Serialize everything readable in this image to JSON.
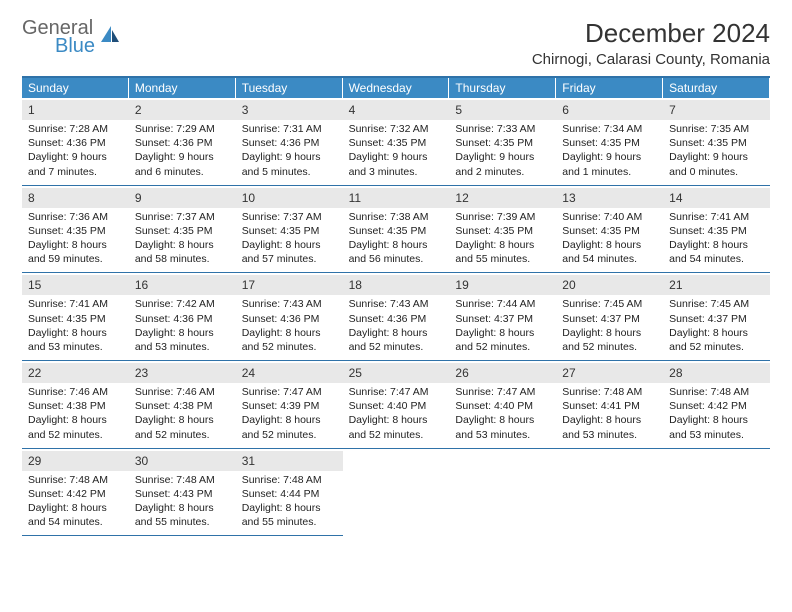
{
  "brand": {
    "word1": "General",
    "word2": "Blue"
  },
  "title": "December 2024",
  "location": "Chirnogi, Calarasi County, Romania",
  "colors": {
    "header_bg": "#3b8ac4",
    "header_text": "#ffffff",
    "border": "#2f72a8",
    "daynum_bg": "#e8e8e8",
    "text": "#222222"
  },
  "daysOfWeek": [
    "Sunday",
    "Monday",
    "Tuesday",
    "Wednesday",
    "Thursday",
    "Friday",
    "Saturday"
  ],
  "days": [
    {
      "n": "1",
      "sunrise": "7:28 AM",
      "sunset": "4:36 PM",
      "dl_h": "9",
      "dl_m": "7"
    },
    {
      "n": "2",
      "sunrise": "7:29 AM",
      "sunset": "4:36 PM",
      "dl_h": "9",
      "dl_m": "6"
    },
    {
      "n": "3",
      "sunrise": "7:31 AM",
      "sunset": "4:36 PM",
      "dl_h": "9",
      "dl_m": "5"
    },
    {
      "n": "4",
      "sunrise": "7:32 AM",
      "sunset": "4:35 PM",
      "dl_h": "9",
      "dl_m": "3"
    },
    {
      "n": "5",
      "sunrise": "7:33 AM",
      "sunset": "4:35 PM",
      "dl_h": "9",
      "dl_m": "2"
    },
    {
      "n": "6",
      "sunrise": "7:34 AM",
      "sunset": "4:35 PM",
      "dl_h": "9",
      "dl_m": "1"
    },
    {
      "n": "7",
      "sunrise": "7:35 AM",
      "sunset": "4:35 PM",
      "dl_h": "9",
      "dl_m": "0"
    },
    {
      "n": "8",
      "sunrise": "7:36 AM",
      "sunset": "4:35 PM",
      "dl_h": "8",
      "dl_m": "59"
    },
    {
      "n": "9",
      "sunrise": "7:37 AM",
      "sunset": "4:35 PM",
      "dl_h": "8",
      "dl_m": "58"
    },
    {
      "n": "10",
      "sunrise": "7:37 AM",
      "sunset": "4:35 PM",
      "dl_h": "8",
      "dl_m": "57"
    },
    {
      "n": "11",
      "sunrise": "7:38 AM",
      "sunset": "4:35 PM",
      "dl_h": "8",
      "dl_m": "56"
    },
    {
      "n": "12",
      "sunrise": "7:39 AM",
      "sunset": "4:35 PM",
      "dl_h": "8",
      "dl_m": "55"
    },
    {
      "n": "13",
      "sunrise": "7:40 AM",
      "sunset": "4:35 PM",
      "dl_h": "8",
      "dl_m": "54"
    },
    {
      "n": "14",
      "sunrise": "7:41 AM",
      "sunset": "4:35 PM",
      "dl_h": "8",
      "dl_m": "54"
    },
    {
      "n": "15",
      "sunrise": "7:41 AM",
      "sunset": "4:35 PM",
      "dl_h": "8",
      "dl_m": "53"
    },
    {
      "n": "16",
      "sunrise": "7:42 AM",
      "sunset": "4:36 PM",
      "dl_h": "8",
      "dl_m": "53"
    },
    {
      "n": "17",
      "sunrise": "7:43 AM",
      "sunset": "4:36 PM",
      "dl_h": "8",
      "dl_m": "52"
    },
    {
      "n": "18",
      "sunrise": "7:43 AM",
      "sunset": "4:36 PM",
      "dl_h": "8",
      "dl_m": "52"
    },
    {
      "n": "19",
      "sunrise": "7:44 AM",
      "sunset": "4:37 PM",
      "dl_h": "8",
      "dl_m": "52"
    },
    {
      "n": "20",
      "sunrise": "7:45 AM",
      "sunset": "4:37 PM",
      "dl_h": "8",
      "dl_m": "52"
    },
    {
      "n": "21",
      "sunrise": "7:45 AM",
      "sunset": "4:37 PM",
      "dl_h": "8",
      "dl_m": "52"
    },
    {
      "n": "22",
      "sunrise": "7:46 AM",
      "sunset": "4:38 PM",
      "dl_h": "8",
      "dl_m": "52"
    },
    {
      "n": "23",
      "sunrise": "7:46 AM",
      "sunset": "4:38 PM",
      "dl_h": "8",
      "dl_m": "52"
    },
    {
      "n": "24",
      "sunrise": "7:47 AM",
      "sunset": "4:39 PM",
      "dl_h": "8",
      "dl_m": "52"
    },
    {
      "n": "25",
      "sunrise": "7:47 AM",
      "sunset": "4:40 PM",
      "dl_h": "8",
      "dl_m": "52"
    },
    {
      "n": "26",
      "sunrise": "7:47 AM",
      "sunset": "4:40 PM",
      "dl_h": "8",
      "dl_m": "53"
    },
    {
      "n": "27",
      "sunrise": "7:48 AM",
      "sunset": "4:41 PM",
      "dl_h": "8",
      "dl_m": "53"
    },
    {
      "n": "28",
      "sunrise": "7:48 AM",
      "sunset": "4:42 PM",
      "dl_h": "8",
      "dl_m": "53"
    },
    {
      "n": "29",
      "sunrise": "7:48 AM",
      "sunset": "4:42 PM",
      "dl_h": "8",
      "dl_m": "54"
    },
    {
      "n": "30",
      "sunrise": "7:48 AM",
      "sunset": "4:43 PM",
      "dl_h": "8",
      "dl_m": "55"
    },
    {
      "n": "31",
      "sunrise": "7:48 AM",
      "sunset": "4:44 PM",
      "dl_h": "8",
      "dl_m": "55"
    }
  ],
  "labels": {
    "sunrise_prefix": "Sunrise: ",
    "sunset_prefix": "Sunset: ",
    "daylight_prefix": "Daylight: ",
    "hours_word": " hours",
    "and_word": "and ",
    "minutes_word": " minutes."
  },
  "layout": {
    "first_day_col": 0,
    "num_days": 31,
    "grid_cols": 7
  }
}
